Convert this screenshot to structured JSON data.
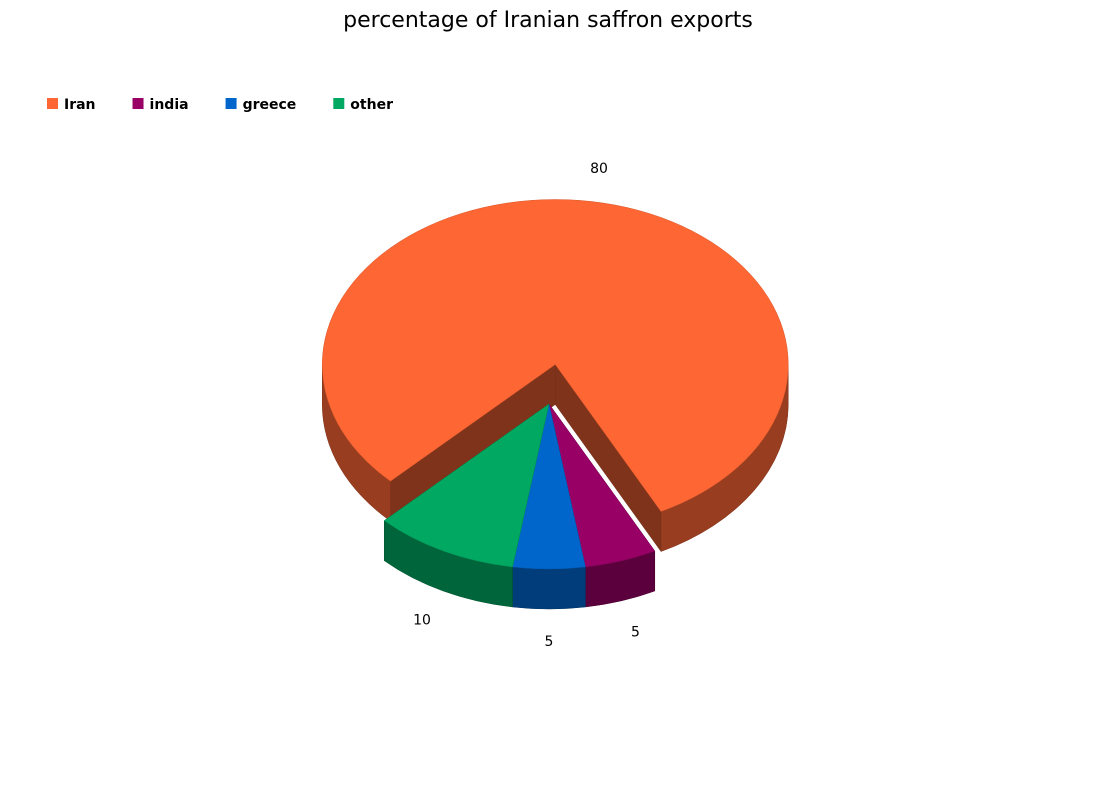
{
  "chart_data": {
    "type": "pie",
    "title": "percentage of Iranian saffron exports",
    "categories": [
      "Iran",
      "india",
      "greece",
      "other"
    ],
    "values": [
      80,
      5,
      5,
      10
    ],
    "colors": [
      "#fe6633",
      "#990066",
      "#0066cc",
      "#00a862"
    ],
    "legend": "top-left"
  }
}
